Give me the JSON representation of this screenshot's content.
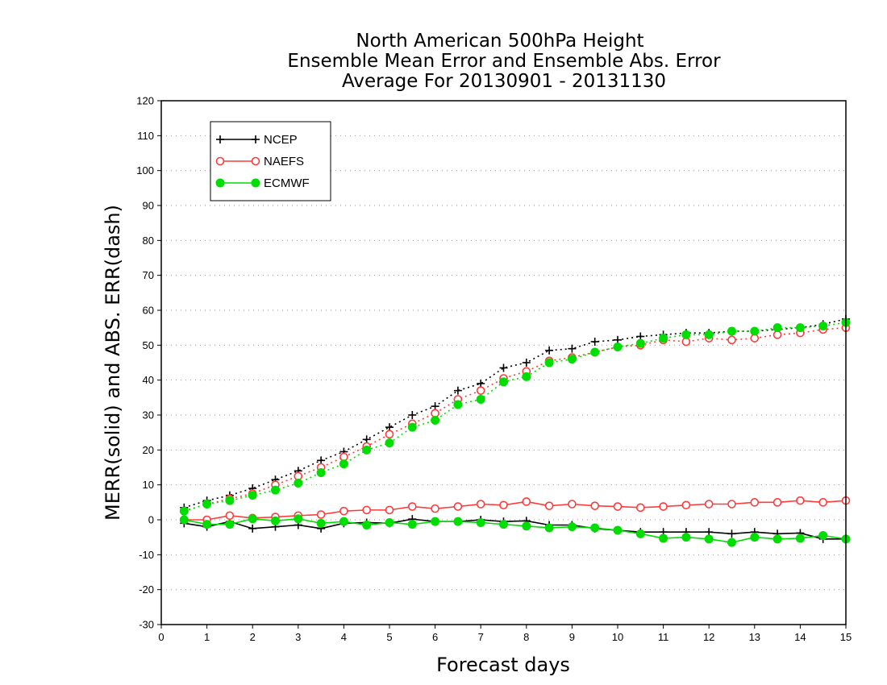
{
  "chart_data": {
    "type": "line",
    "title": [
      "North American 500hPa Height",
      "Ensemble Mean Error and Ensemble Abs. Error",
      "Average For 20130901 - 20131130"
    ],
    "xlabel": "Forecast days",
    "ylabel": "MERR(solid) and ABS. ERR(dash)",
    "xlim": [
      0,
      15
    ],
    "ylim": [
      -30,
      120
    ],
    "x_ticks": [
      "0",
      "1",
      "2",
      "3",
      "4",
      "5",
      "6",
      "7",
      "8",
      "9",
      "10",
      "11",
      "12",
      "13",
      "14",
      "15"
    ],
    "y_ticks": [
      "-30",
      "-20",
      "-10",
      "0",
      "10",
      "20",
      "30",
      "40",
      "50",
      "60",
      "70",
      "80",
      "90",
      "100",
      "110",
      "120"
    ],
    "grid": true,
    "legend_position": "top-left",
    "x": [
      0.5,
      1,
      1.5,
      2,
      2.5,
      3,
      3.5,
      4,
      4.5,
      5,
      5.5,
      6,
      6.5,
      7,
      7.5,
      8,
      8.5,
      9,
      9.5,
      10,
      10.5,
      11,
      11.5,
      12,
      12.5,
      13,
      13.5,
      14,
      14.5,
      15
    ],
    "series": [
      {
        "name": "NCEP",
        "color": "#000000",
        "marker": "plus",
        "merr": [
          -1,
          -2,
          -0.5,
          -2.5,
          -2,
          -1.5,
          -2.5,
          -1,
          -0.8,
          -1,
          0.2,
          -0.5,
          -0.5,
          0,
          -0.5,
          -0.3,
          -1.5,
          -1.5,
          -2.5,
          -3,
          -3.5,
          -3.5,
          -3.5,
          -3.5,
          -4,
          -3.5,
          -4,
          -3.8,
          -5.5,
          -5.5
        ],
        "abs_err": [
          3.5,
          5.5,
          7,
          9,
          11.5,
          14,
          17,
          19.5,
          23,
          26.5,
          30,
          32.5,
          37,
          39,
          43.5,
          45,
          48.5,
          49,
          51,
          51.5,
          52.5,
          53,
          53.5,
          53.5,
          54,
          54,
          54.5,
          55,
          56,
          57.5
        ]
      },
      {
        "name": "NAEFS",
        "color": "#ff3b3b",
        "marker": "open-circle",
        "merr": [
          0,
          0,
          1.2,
          0.5,
          0.8,
          1.2,
          1.5,
          2.5,
          2.8,
          2.8,
          3.8,
          3.2,
          3.8,
          4.5,
          4.2,
          5.2,
          4,
          4.5,
          4,
          3.8,
          3.5,
          3.8,
          4.2,
          4.5,
          4.5,
          5,
          5,
          5.5,
          5,
          5.5
        ],
        "abs_err": [
          2.5,
          4.5,
          6,
          7.5,
          10,
          12.5,
          15,
          18,
          21,
          24.5,
          27.5,
          30.5,
          34.5,
          37,
          40.5,
          42.5,
          45.5,
          46.5,
          48,
          49.5,
          50,
          51.5,
          51,
          52,
          51.5,
          52,
          53,
          53.5,
          54.5,
          55
        ]
      },
      {
        "name": "ECMWF",
        "color": "#00dd00",
        "marker": "filled-circle",
        "merr": [
          0,
          -1.3,
          -1.3,
          0.3,
          -0.3,
          0.3,
          -1,
          -0.5,
          -1.5,
          -0.8,
          -1.3,
          -0.5,
          -0.5,
          -0.8,
          -1.3,
          -1.8,
          -2.3,
          -2,
          -2.3,
          -3,
          -4,
          -5.3,
          -5,
          -5.5,
          -6.5,
          -5,
          -5.5,
          -5.3,
          -4.5,
          -5.5
        ],
        "abs_err": [
          2.5,
          4.5,
          5.5,
          7,
          8.5,
          10.5,
          13.5,
          16,
          20,
          22,
          26.5,
          28.5,
          33,
          34.5,
          39.5,
          41,
          45,
          46,
          48,
          49.5,
          50.5,
          52,
          53,
          53,
          54,
          54,
          55,
          55,
          55.5,
          56.5
        ]
      }
    ]
  }
}
